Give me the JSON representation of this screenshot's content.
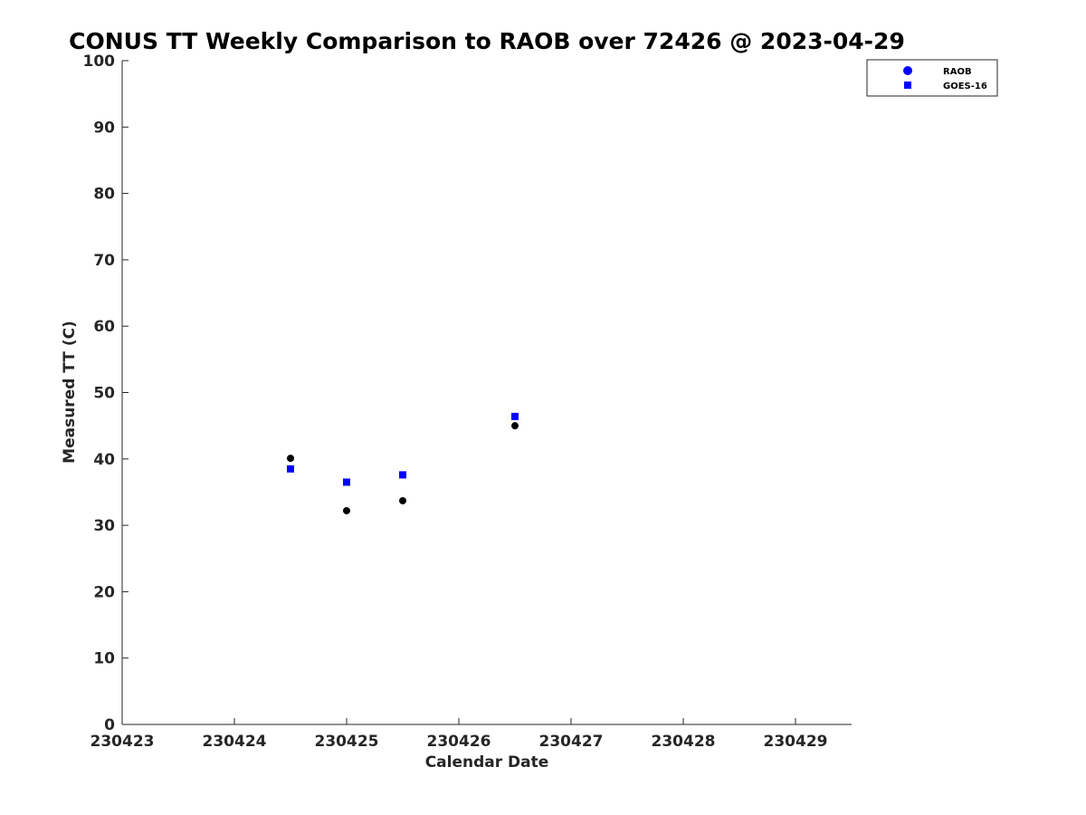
{
  "chart_data": {
    "type": "scatter",
    "title": "CONUS TT Weekly Comparison to RAOB over 72426 @ 2023-04-29",
    "xlabel": "Calendar Date",
    "ylabel": "Measured TT (C)",
    "xlim": [
      230423,
      230429.5
    ],
    "ylim": [
      0,
      100
    ],
    "x_ticks": [
      230423,
      230424,
      230425,
      230426,
      230427,
      230428,
      230429
    ],
    "x_tick_labels": [
      "230423",
      "230424",
      "230425",
      "230426",
      "230427",
      "230428",
      "230429"
    ],
    "y_ticks": [
      0,
      10,
      20,
      30,
      40,
      50,
      60,
      70,
      80,
      90,
      100
    ],
    "y_tick_labels": [
      "0",
      "10",
      "20",
      "30",
      "40",
      "50",
      "60",
      "70",
      "80",
      "90",
      "100"
    ],
    "grid": false,
    "legend_position": "top-right, outside plot",
    "series": [
      {
        "name": "RAOB",
        "marker": "circle",
        "color": "#000000",
        "legend_color": "#0000ff",
        "points": [
          {
            "x": 230424.5,
            "y": 40.1
          },
          {
            "x": 230425.0,
            "y": 32.2
          },
          {
            "x": 230425.5,
            "y": 33.7
          },
          {
            "x": 230426.5,
            "y": 45.0
          }
        ]
      },
      {
        "name": "GOES-16",
        "marker": "square",
        "color": "#0000ff",
        "legend_color": "#0000ff",
        "points": [
          {
            "x": 230424.5,
            "y": 38.5
          },
          {
            "x": 230425.0,
            "y": 36.5
          },
          {
            "x": 230425.5,
            "y": 37.6
          },
          {
            "x": 230426.5,
            "y": 46.4
          }
        ]
      }
    ]
  }
}
